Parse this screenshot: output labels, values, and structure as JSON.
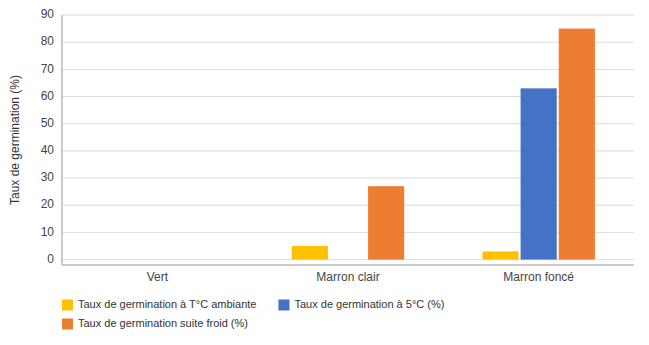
{
  "chart_data": {
    "type": "bar",
    "categories": [
      "Vert",
      "Marron clair",
      "Marron foncé"
    ],
    "series": [
      {
        "name": "Taux de germination à T°C ambiante",
        "color": "#FFC000",
        "values": [
          0,
          5,
          3
        ]
      },
      {
        "name": "Taux de germination à 5°C (%)",
        "color": "#4472C4",
        "values": [
          0,
          0,
          63
        ]
      },
      {
        "name": "Taux de germination suite froid (%)",
        "color": "#ED7D31",
        "values": [
          0,
          27,
          85
        ]
      }
    ],
    "ylabel": "Taux de germination (%)",
    "ylim": [
      -2,
      90
    ],
    "yticks": [
      0,
      10,
      20,
      30,
      40,
      50,
      60,
      70,
      80,
      90
    ],
    "grid": true,
    "legend": "bottom"
  }
}
